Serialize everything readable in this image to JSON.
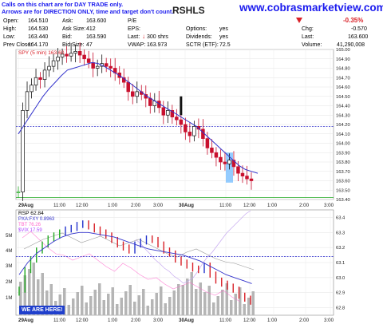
{
  "banner": {
    "line1": "Calls on this chart are for DAY TRADE only.",
    "line2": "Arrows are for DIRECTION ONLY, time and target don't count.",
    "symbol_fragment": "RSHLS",
    "website": "www.cobrasmarketview.com"
  },
  "quote": {
    "open_label": "Open:",
    "open": "164.510",
    "high_label": "High:",
    "high": "164.530",
    "low_label": "Low:",
    "low": "163.440",
    "prev_close_label": "Prev Close:",
    "prev_close": "164.170",
    "ask_label": "Ask:",
    "ask": "163.600",
    "ask_size_label": "Ask Size:",
    "ask_size": "412",
    "bid_label": "Bid:",
    "bid": "163.590",
    "bid_size_label": "Bid Size:",
    "bid_size": "47",
    "pe_label": "P/E",
    "eps_label": "EPS:",
    "last_label": "Last:",
    "last_trade": "300 shrs",
    "vwap_label": "VWAP:",
    "vwap": "163.973",
    "options_label": "Options:",
    "options": "yes",
    "dividends_label": "Dividends:",
    "dividends": "yes",
    "sctr_label": "SCTR (ETF):",
    "sctr": "72.5",
    "chg_pct": "-0.35%",
    "chg_label": "Chg:",
    "chg": "-0.570",
    "last2_label": "Last:",
    "last": "163.600",
    "volume_label": "Volume:",
    "volume": "41,290,008"
  },
  "colors": {
    "up": "#c8102e",
    "down": "#111111",
    "green_up": "#22aa22",
    "ma": "#3333cc",
    "accent": "#d92027",
    "blue_link": "#1a1aee"
  },
  "chart_data": [
    {
      "type": "candlestick",
      "title": "SPY (5 min) 163.60",
      "x_labels": [
        "29Aug",
        "11:00",
        "12:00",
        "1:00",
        "2:00",
        "3:00",
        "30Aug",
        "11:00",
        "12:00",
        "1:00",
        "2:00",
        "3:00"
      ],
      "ylim": [
        163.4,
        165.0
      ],
      "yticks": [
        "165.00",
        "164.90",
        "164.80",
        "164.70",
        "164.60",
        "164.50",
        "164.40",
        "164.30",
        "164.20",
        "164.10",
        "164.00",
        "163.90",
        "163.80",
        "163.70",
        "163.60",
        "163.50",
        "163.40"
      ],
      "close_series": [
        163.48,
        164.35,
        164.55,
        164.62,
        164.7,
        164.68,
        164.78,
        164.82,
        164.88,
        164.92,
        164.95,
        164.93,
        164.96,
        164.98,
        164.94,
        164.9,
        164.86,
        164.8,
        164.82,
        164.85,
        164.82,
        164.8,
        164.75,
        164.7,
        164.65,
        164.55,
        164.5,
        164.55,
        164.52,
        164.48,
        164.4,
        164.45,
        164.38,
        164.3,
        164.35,
        164.28,
        164.25,
        164.2,
        164.12,
        164.08,
        164.18,
        164.15,
        164.05,
        163.95,
        163.9,
        163.85,
        163.8,
        163.78,
        163.82,
        163.75,
        163.68,
        163.65,
        163.62,
        163.6
      ],
      "moving_average": [
        164.1,
        164.2,
        164.3,
        164.4,
        164.5,
        164.58,
        164.65,
        164.72,
        164.78,
        164.8,
        164.82,
        164.84,
        164.86,
        164.85,
        164.82,
        164.78,
        164.74,
        164.7,
        164.65,
        164.6,
        164.55,
        164.5,
        164.46,
        164.42,
        164.38,
        164.34,
        164.3,
        164.26,
        164.22,
        164.18,
        164.12,
        164.06,
        164.0,
        163.94,
        163.88,
        163.82,
        163.76,
        163.72,
        163.7,
        163.68
      ],
      "reference_lines": [
        164.18,
        163.42
      ]
    },
    {
      "type": "line",
      "title": "RSP 62.84",
      "series": [
        {
          "name": "PXA:FXY 0.8963",
          "color": "#3333cc"
        },
        {
          "name": "TBT 76.26",
          "color": "#ff66cc"
        },
        {
          "name": "$VIX 17.59",
          "color": "#aa44ff"
        }
      ],
      "rsp_close": [
        62.92,
        63.05,
        63.12,
        63.18,
        63.22,
        63.26,
        63.28,
        63.3,
        63.32,
        63.33,
        63.35,
        63.36,
        63.34,
        63.32,
        63.3,
        63.28,
        63.25,
        63.22,
        63.2,
        63.18,
        63.22,
        63.24,
        63.26,
        63.25,
        63.22,
        63.18,
        63.16,
        63.12,
        63.1,
        63.08,
        63.06,
        63.05,
        63.08,
        63.02,
        62.98,
        62.96,
        62.94,
        62.92,
        62.88,
        62.86,
        62.84
      ],
      "volume_labels": [
        "5M",
        "4M",
        "3M",
        "2M",
        "1M"
      ],
      "yticks": [
        "63.4",
        "63.3",
        "63.2",
        "63.1",
        "63.0",
        "62.9",
        "62.8"
      ],
      "ylim": [
        62.75,
        63.45
      ],
      "reference_lines": [
        63.14
      ],
      "x_labels": [
        "29Aug",
        "11:00",
        "12:00",
        "1:00",
        "2:00",
        "3:00",
        "30Aug",
        "11:00",
        "12:00",
        "1:00",
        "2:00",
        "3:00"
      ],
      "annotation": "WE ARE HERE!"
    }
  ]
}
